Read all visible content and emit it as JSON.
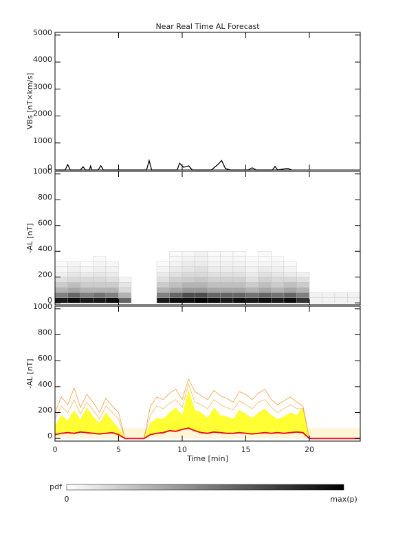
{
  "chart_data": [
    {
      "type": "line",
      "title": "Near Real Time AL Forecast",
      "y_label": "VBs [nT×km/s]",
      "x": [
        0,
        0.8,
        1.0,
        1.2,
        2.0,
        2.2,
        2.4,
        2.7,
        2.8,
        2.9,
        3.4,
        3.6,
        3.8,
        7.2,
        7.4,
        7.6,
        8.0,
        9.6,
        9.8,
        10.1,
        10.5,
        10.8,
        11.5,
        12.3,
        12.8,
        13.1,
        13.4,
        13.8,
        15.2,
        15.5,
        15.8,
        17.1,
        17.3,
        17.5,
        18.3,
        18.6
      ],
      "series": [
        {
          "color": "#000000",
          "values": [
            0,
            0,
            200,
            0,
            0,
            120,
            0,
            0,
            150,
            0,
            0,
            160,
            0,
            0,
            350,
            0,
            0,
            0,
            250,
            100,
            150,
            0,
            0,
            0,
            200,
            350,
            50,
            0,
            0,
            80,
            0,
            0,
            130,
            0,
            60,
            0
          ]
        }
      ],
      "xlim": [
        0,
        24
      ],
      "xticks": [
        0,
        5,
        10,
        15,
        20
      ],
      "show_xtick_labels": false,
      "ylim": [
        0,
        5100
      ],
      "yticks": [
        0,
        1000,
        2000,
        3000,
        4000,
        5000
      ]
    },
    {
      "type": "heatmap",
      "y_label": "-AL [nT]",
      "x_edges": [
        0,
        1,
        2,
        3,
        4,
        5,
        6,
        7,
        8,
        9,
        10,
        11,
        12,
        13,
        14,
        15,
        16,
        17,
        18,
        19,
        20,
        21,
        22,
        23,
        24
      ],
      "y_edges": [
        0,
        40,
        80,
        120,
        160,
        200,
        240,
        280,
        320,
        360,
        400
      ],
      "z": [
        [
          0.9,
          0.95,
          0.9,
          0.9,
          0.95,
          0.6,
          0,
          0,
          0.9,
          0.95,
          0.95,
          1,
          0.95,
          0.9,
          0.95,
          0.9,
          0.95,
          0.9,
          0.95,
          0.8,
          0.05,
          0.05,
          0.05,
          0.05
        ],
        [
          0.5,
          0.6,
          0.5,
          0.55,
          0.5,
          0.3,
          0,
          0,
          0.5,
          0.6,
          0.7,
          0.7,
          0.6,
          0.6,
          0.6,
          0.55,
          0.6,
          0.55,
          0.6,
          0.5,
          0.05,
          0.05,
          0.05,
          0.05
        ],
        [
          0.3,
          0.35,
          0.3,
          0.3,
          0.3,
          0.15,
          0,
          0,
          0.3,
          0.35,
          0.4,
          0.4,
          0.35,
          0.35,
          0.35,
          0.3,
          0.35,
          0.3,
          0.35,
          0.3,
          0,
          0,
          0,
          0
        ],
        [
          0.2,
          0.25,
          0.2,
          0.2,
          0.2,
          0.1,
          0,
          0,
          0.2,
          0.25,
          0.3,
          0.3,
          0.25,
          0.25,
          0.25,
          0.2,
          0.25,
          0.2,
          0.25,
          0.2,
          0,
          0,
          0,
          0
        ],
        [
          0.12,
          0.15,
          0.15,
          0.15,
          0.12,
          0.05,
          0,
          0,
          0.12,
          0.18,
          0.2,
          0.22,
          0.18,
          0.18,
          0.18,
          0.12,
          0.18,
          0.15,
          0.15,
          0.12,
          0,
          0,
          0,
          0
        ],
        [
          0.06,
          0.1,
          0.08,
          0.1,
          0.08,
          0,
          0,
          0,
          0.08,
          0.12,
          0.15,
          0.15,
          0.12,
          0.12,
          0.12,
          0.08,
          0.12,
          0.1,
          0.08,
          0.06,
          0,
          0,
          0,
          0
        ],
        [
          0.03,
          0.06,
          0.04,
          0.06,
          0.05,
          0,
          0,
          0,
          0.04,
          0.08,
          0.1,
          0.12,
          0.08,
          0.08,
          0.08,
          0.05,
          0.08,
          0.06,
          0.04,
          0,
          0,
          0,
          0,
          0
        ],
        [
          0.02,
          0.04,
          0.02,
          0.04,
          0.03,
          0,
          0,
          0,
          0.02,
          0.05,
          0.08,
          0.08,
          0.05,
          0.05,
          0.05,
          0.03,
          0.04,
          0.04,
          0.02,
          0,
          0,
          0,
          0,
          0
        ],
        [
          0,
          0,
          0,
          0.02,
          0,
          0,
          0,
          0,
          0,
          0.03,
          0.05,
          0.06,
          0.03,
          0.03,
          0.03,
          0.02,
          0.02,
          0.02,
          0,
          0,
          0,
          0,
          0,
          0
        ],
        [
          0,
          0,
          0,
          0,
          0,
          0,
          0,
          0,
          0,
          0.02,
          0.03,
          0.05,
          0.02,
          0.02,
          0.02,
          0,
          0.02,
          0,
          0,
          0,
          0,
          0,
          0,
          0
        ]
      ],
      "xlim": [
        0,
        24
      ],
      "xticks": [
        0,
        5,
        10,
        15,
        20
      ],
      "show_xtick_labels": false,
      "ylim": [
        -15,
        1020
      ],
      "yticks": [
        0,
        200,
        400,
        600,
        800,
        1000
      ]
    },
    {
      "type": "line",
      "y_label": "-AL [nT]",
      "x_label": "Time [min]",
      "x": [
        0,
        0.5,
        1,
        1.5,
        2,
        2.5,
        3,
        3.5,
        4,
        4.5,
        5,
        5.5,
        6,
        6.5,
        7,
        7.5,
        8,
        8.5,
        9,
        9.5,
        10,
        10.5,
        11,
        11.5,
        12,
        12.5,
        13,
        13.5,
        14,
        14.5,
        15,
        15.5,
        16,
        16.5,
        17,
        17.5,
        18,
        18.5,
        19,
        19.5,
        20,
        20.5,
        21,
        21.5,
        22,
        22.5,
        23,
        23.5,
        24
      ],
      "bands": [
        {
          "color": "#fff6d8",
          "lower": [
            0,
            0,
            0,
            0,
            0,
            0,
            0,
            0,
            0,
            0,
            0,
            0,
            0,
            0,
            0,
            0,
            0,
            0,
            0,
            0,
            0,
            0,
            0,
            0,
            0,
            0,
            0,
            0,
            0,
            0,
            0,
            0,
            0,
            0,
            0,
            0,
            0,
            0,
            0,
            0,
            0,
            0,
            0,
            0,
            0,
            0,
            0,
            0,
            0
          ],
          "upper": [
            80,
            80,
            80,
            80,
            80,
            80,
            80,
            80,
            80,
            80,
            80,
            80,
            80,
            80,
            80,
            80,
            80,
            80,
            80,
            80,
            80,
            80,
            80,
            80,
            80,
            80,
            80,
            80,
            80,
            80,
            80,
            80,
            80,
            80,
            80,
            80,
            80,
            80,
            80,
            80,
            80,
            80,
            80,
            80,
            80,
            80,
            80,
            80,
            80
          ]
        },
        {
          "color": "#ffff33",
          "lower": [
            30,
            40,
            45,
            40,
            50,
            45,
            40,
            35,
            40,
            45,
            30,
            0,
            0,
            0,
            0,
            30,
            40,
            45,
            60,
            55,
            70,
            80,
            60,
            45,
            40,
            50,
            45,
            40,
            40,
            45,
            40,
            35,
            40,
            45,
            40,
            45,
            40,
            45,
            50,
            45,
            0,
            0,
            0,
            0,
            0,
            0,
            0,
            0,
            0
          ],
          "upper": [
            100,
            180,
            140,
            220,
            150,
            240,
            170,
            120,
            200,
            140,
            80,
            0,
            0,
            0,
            0,
            120,
            160,
            150,
            200,
            240,
            180,
            380,
            220,
            200,
            160,
            240,
            180,
            170,
            150,
            220,
            190,
            160,
            200,
            230,
            180,
            150,
            170,
            200,
            180,
            240,
            0,
            0,
            0,
            0,
            0,
            0,
            0,
            0,
            0
          ]
        }
      ],
      "series": [
        {
          "color": "#f5b860",
          "values": [
            150,
            250,
            200,
            300,
            190,
            280,
            220,
            150,
            250,
            200,
            150,
            0,
            0,
            0,
            0,
            180,
            250,
            230,
            270,
            300,
            240,
            420,
            280,
            260,
            230,
            300,
            260,
            240,
            220,
            290,
            260,
            230,
            280,
            300,
            240,
            200,
            230,
            260,
            230,
            230,
            0,
            0,
            0,
            0,
            0,
            0,
            0,
            0,
            0
          ]
        },
        {
          "color": "#f29a3a",
          "values": [
            200,
            320,
            260,
            390,
            240,
            340,
            280,
            200,
            310,
            250,
            200,
            0,
            0,
            0,
            0,
            250,
            320,
            300,
            350,
            380,
            300,
            460,
            360,
            330,
            300,
            370,
            330,
            310,
            280,
            360,
            340,
            300,
            350,
            380,
            300,
            260,
            290,
            320,
            280,
            250,
            0,
            0,
            0,
            0,
            0,
            0,
            0,
            0,
            0
          ]
        },
        {
          "color": "#e8141a",
          "values": [
            30,
            40,
            45,
            40,
            50,
            45,
            40,
            35,
            40,
            45,
            30,
            0,
            0,
            0,
            0,
            30,
            40,
            45,
            60,
            55,
            70,
            80,
            60,
            45,
            40,
            50,
            45,
            40,
            40,
            45,
            40,
            35,
            40,
            45,
            40,
            45,
            40,
            45,
            50,
            45,
            0,
            0,
            0,
            0,
            0,
            0,
            0,
            0,
            0
          ]
        }
      ],
      "xlim": [
        0,
        24
      ],
      "xticks": [
        0,
        5,
        10,
        15,
        20
      ],
      "show_xtick_labels": true,
      "ylim": [
        -20,
        1020
      ],
      "yticks": [
        0,
        200,
        400,
        600,
        800,
        1000
      ]
    }
  ],
  "colorbar": {
    "label": "pdf",
    "min_label": "0",
    "max_label": "max(p)"
  }
}
